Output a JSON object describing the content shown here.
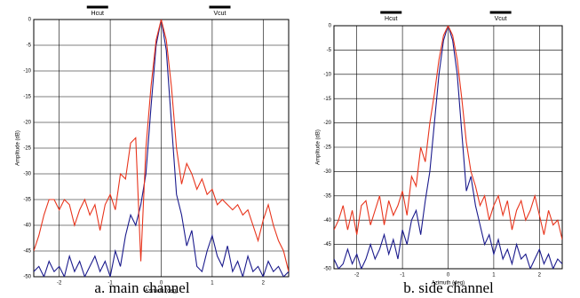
{
  "chart_data": [
    {
      "type": "line",
      "title": "a. main channel",
      "xlabel": "Azimuth (deg)",
      "ylabel": "Amplitude (dB)",
      "x": [
        -2.5,
        -2.4,
        -2.3,
        -2.2,
        -2.1,
        -2.0,
        -1.9,
        -1.8,
        -1.7,
        -1.6,
        -1.5,
        -1.4,
        -1.3,
        -1.2,
        -1.1,
        -1.0,
        -0.9,
        -0.8,
        -0.7,
        -0.6,
        -0.5,
        -0.4,
        -0.3,
        -0.2,
        -0.1,
        0,
        0.1,
        0.2,
        0.3,
        0.4,
        0.5,
        0.6,
        0.7,
        0.8,
        0.9,
        1.0,
        1.1,
        1.2,
        1.3,
        1.4,
        1.5,
        1.6,
        1.7,
        1.8,
        1.9,
        2.0,
        2.1,
        2.2,
        2.3,
        2.4,
        2.5
      ],
      "series": [
        {
          "name": "Hcut",
          "color": "#1a1a8c",
          "values": [
            -49,
            -48,
            -50,
            -47,
            -49,
            -48,
            -50,
            -46,
            -49,
            -47,
            -50,
            -48,
            -46,
            -49,
            -47,
            -50,
            -45,
            -48,
            -42,
            -38,
            -40,
            -36,
            -30,
            -17,
            -5,
            0,
            -6,
            -20,
            -34,
            -38,
            -44,
            -41,
            -48,
            -49,
            -45,
            -42,
            -46,
            -48,
            -44,
            -49,
            -47,
            -50,
            -46,
            -49,
            -48,
            -50,
            -47,
            -49,
            -48,
            -50,
            -49
          ]
        },
        {
          "name": "Vcut",
          "color": "#e8341c",
          "values": [
            -45,
            -42,
            -38,
            -35,
            -35,
            -37,
            -35,
            -36,
            -40,
            -37,
            -35,
            -38,
            -36,
            -41,
            -36,
            -34,
            -37,
            -30,
            -31,
            -24,
            -23,
            -47,
            -25,
            -13,
            -4,
            0,
            -4,
            -13,
            -25,
            -32,
            -28,
            -30,
            -33,
            -31,
            -34,
            -33,
            -36,
            -35,
            -36,
            -37,
            -36,
            -38,
            -37,
            -40,
            -43,
            -39,
            -36,
            -40,
            -43,
            -45,
            -49
          ]
        }
      ],
      "legend_color": "#000",
      "xlim": [
        -2.5,
        2.5
      ],
      "ylim": [
        -50,
        0
      ],
      "xticks": [
        -2,
        -1,
        0,
        1,
        2
      ],
      "yticks": [
        0,
        -5,
        -10,
        -15,
        -20,
        -25,
        -30,
        -35,
        -40,
        -45,
        -50
      ],
      "grid": true
    },
    {
      "type": "line",
      "title": "b. side channel",
      "xlabel": "Azimuth (deg)",
      "ylabel": "Amplitude (dB)",
      "x": [
        -2.5,
        -2.4,
        -2.3,
        -2.2,
        -2.1,
        -2.0,
        -1.9,
        -1.8,
        -1.7,
        -1.6,
        -1.5,
        -1.4,
        -1.3,
        -1.2,
        -1.1,
        -1.0,
        -0.9,
        -0.8,
        -0.7,
        -0.6,
        -0.5,
        -0.4,
        -0.3,
        -0.2,
        -0.1,
        0,
        0.1,
        0.2,
        0.3,
        0.4,
        0.5,
        0.6,
        0.7,
        0.8,
        0.9,
        1.0,
        1.1,
        1.2,
        1.3,
        1.4,
        1.5,
        1.6,
        1.7,
        1.8,
        1.9,
        2.0,
        2.1,
        2.2,
        2.3,
        2.4,
        2.5
      ],
      "series": [
        {
          "name": "Hcut",
          "color": "#1a1a8c",
          "values": [
            -48,
            -50,
            -49,
            -46,
            -49,
            -47,
            -50,
            -48,
            -45,
            -48,
            -46,
            -43,
            -47,
            -44,
            -48,
            -42,
            -45,
            -40,
            -38,
            -43,
            -36,
            -30,
            -20,
            -10,
            -3,
            0,
            -3,
            -10,
            -22,
            -34,
            -31,
            -37,
            -41,
            -45,
            -43,
            -47,
            -44,
            -48,
            -46,
            -49,
            -45,
            -48,
            -47,
            -50,
            -48,
            -46,
            -49,
            -47,
            -50,
            -48,
            -49
          ]
        },
        {
          "name": "Vcut",
          "color": "#e8341c",
          "values": [
            -42,
            -40,
            -37,
            -42,
            -38,
            -43,
            -37,
            -36,
            -41,
            -38,
            -35,
            -41,
            -36,
            -39,
            -37,
            -34,
            -39,
            -31,
            -33,
            -25,
            -28,
            -20,
            -14,
            -7,
            -2,
            0,
            -2,
            -7,
            -15,
            -24,
            -30,
            -33,
            -37,
            -35,
            -40,
            -37,
            -35,
            -39,
            -36,
            -42,
            -38,
            -36,
            -40,
            -38,
            -35,
            -39,
            -43,
            -38,
            -41,
            -40,
            -44
          ]
        }
      ],
      "legend_color": "#000",
      "xlim": [
        -2.5,
        2.5
      ],
      "ylim": [
        -50,
        0
      ],
      "xticks": [
        -2,
        -1,
        0,
        1,
        2
      ],
      "yticks": [
        0,
        -5,
        -10,
        -15,
        -20,
        -25,
        -30,
        -35,
        -40,
        -45,
        -50
      ],
      "grid": true
    }
  ]
}
